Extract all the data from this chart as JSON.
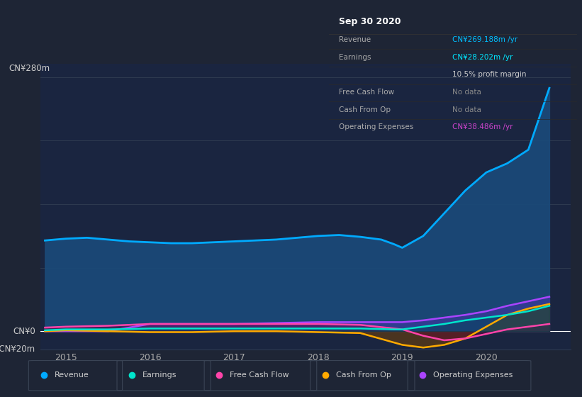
{
  "background_color": "#1e2535",
  "plot_bg_color": "#1a2540",
  "grid_color": "#2e3a50",
  "title_box": {
    "date": "Sep 30 2020",
    "rows": [
      {
        "label": "Revenue",
        "value": "CN¥269.188m /yr",
        "value_color": "#00bfff"
      },
      {
        "label": "Earnings",
        "value": "CN¥28.202m /yr",
        "value_color": "#00e5ff"
      },
      {
        "label": "",
        "value": "10.5% profit margin",
        "value_color": "#ffffff"
      },
      {
        "label": "Free Cash Flow",
        "value": "No data",
        "value_color": "#888888"
      },
      {
        "label": "Cash From Op",
        "value": "No data",
        "value_color": "#888888"
      },
      {
        "label": "Operating Expenses",
        "value": "CN¥38.486m /yr",
        "value_color": "#cc44cc"
      }
    ]
  },
  "ylabel_top": "CN¥280m",
  "ylabel_zero": "CN¥0",
  "ylabel_neg": "-CN¥20m",
  "ylim": [
    -20,
    295
  ],
  "xlim": [
    2014.7,
    2021.0
  ],
  "x_ticks": [
    2015,
    2016,
    2017,
    2018,
    2019,
    2020
  ],
  "grid_y_vals": [
    -20,
    0,
    70,
    140,
    210,
    280
  ],
  "series": {
    "revenue": {
      "color": "#00aaff",
      "fill_color": "#1a4a7a",
      "label": "Revenue",
      "x": [
        2014.75,
        2015.0,
        2015.25,
        2015.5,
        2015.75,
        2016.0,
        2016.25,
        2016.5,
        2016.75,
        2017.0,
        2017.25,
        2017.5,
        2017.75,
        2018.0,
        2018.25,
        2018.5,
        2018.75,
        2018.9,
        2019.0,
        2019.25,
        2019.5,
        2019.75,
        2020.0,
        2020.25,
        2020.5,
        2020.75
      ],
      "y": [
        100,
        102,
        103,
        101,
        99,
        98,
        97,
        97,
        98,
        99,
        100,
        101,
        103,
        105,
        106,
        104,
        101,
        96,
        92,
        105,
        130,
        155,
        175,
        185,
        200,
        268
      ]
    },
    "earnings": {
      "color": "#00e5cc",
      "fill_color": "#004455",
      "label": "Earnings",
      "x": [
        2014.75,
        2015.0,
        2015.5,
        2016.0,
        2016.5,
        2017.0,
        2017.5,
        2018.0,
        2018.5,
        2018.9,
        2019.0,
        2019.25,
        2019.5,
        2019.75,
        2020.0,
        2020.25,
        2020.5,
        2020.75
      ],
      "y": [
        1,
        2,
        2,
        3,
        3,
        3,
        3,
        3,
        3,
        2,
        2,
        5,
        8,
        12,
        15,
        18,
        22,
        28
      ]
    },
    "free_cash_flow": {
      "color": "#ff44aa",
      "fill_color": "#660033",
      "label": "Free Cash Flow",
      "x": [
        2014.75,
        2015.0,
        2015.5,
        2016.0,
        2016.5,
        2017.0,
        2017.5,
        2018.0,
        2018.5,
        2019.0,
        2019.25,
        2019.5,
        2019.75,
        2020.0,
        2020.25,
        2020.5,
        2020.75
      ],
      "y": [
        4,
        5,
        6,
        8,
        8,
        8,
        8,
        8,
        7,
        2,
        -5,
        -10,
        -8,
        -3,
        2,
        5,
        8
      ]
    },
    "cash_from_op": {
      "color": "#ffaa00",
      "fill_color": "#7a4400",
      "label": "Cash From Op",
      "x": [
        2014.75,
        2015.0,
        2015.5,
        2016.0,
        2016.5,
        2017.0,
        2017.5,
        2018.0,
        2018.5,
        2019.0,
        2019.25,
        2019.5,
        2019.75,
        2020.0,
        2020.25,
        2020.5,
        2020.75
      ],
      "y": [
        0,
        1,
        0,
        -1,
        -1,
        0,
        0,
        -1,
        -2,
        -15,
        -18,
        -15,
        -8,
        5,
        18,
        25,
        30
      ]
    },
    "operating_expenses": {
      "color": "#aa44ff",
      "fill_color": "#4433aa",
      "label": "Operating Expenses",
      "x": [
        2014.75,
        2015.0,
        2015.5,
        2016.0,
        2016.5,
        2017.0,
        2017.5,
        2018.0,
        2018.5,
        2019.0,
        2019.25,
        2019.5,
        2019.75,
        2020.0,
        2020.25,
        2020.5,
        2020.75
      ],
      "y": [
        0,
        0,
        0,
        8,
        8,
        8,
        9,
        10,
        10,
        10,
        12,
        15,
        18,
        22,
        28,
        33,
        38
      ]
    }
  },
  "legend_items": [
    {
      "label": "Revenue",
      "color": "#00aaff"
    },
    {
      "label": "Earnings",
      "color": "#00e5cc"
    },
    {
      "label": "Free Cash Flow",
      "color": "#ff44aa"
    },
    {
      "label": "Cash From Op",
      "color": "#ffaa00"
    },
    {
      "label": "Operating Expenses",
      "color": "#aa44ff"
    }
  ]
}
